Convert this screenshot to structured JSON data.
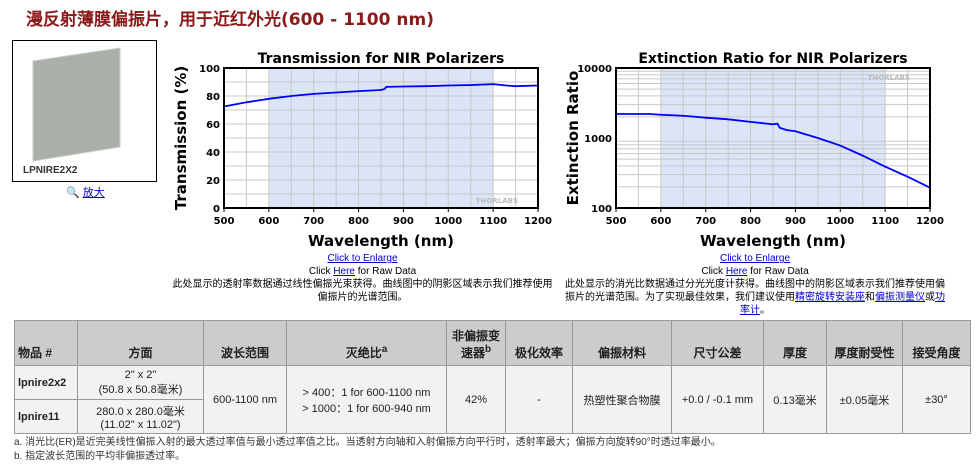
{
  "title": "漫反射薄膜偏振片，用于近红外光(600 - 1100 nm)",
  "product_image": {
    "label": "LPNIRE2X2",
    "zoom_label": "放大",
    "zoom_icon": "magnifier-plus-icon"
  },
  "charts_text": [
    {
      "enlarge": "Click to Enlarge",
      "click": "Click ",
      "here": "Here",
      "raw": " for Raw Data",
      "desc": "此处显示的透射率数据通过线性偏振光束获得。曲线图中的阴影区域表示我们推荐使用偏振片的光谱范围。"
    },
    {
      "enlarge": "Click to Enlarge",
      "click": "Click ",
      "here": "Here",
      "raw": " for Raw Data",
      "desc": "此处显示的消光比数据通过分光光度计获得。曲线图中的阴影区域表示我们推荐使用偏振片的光谱范围。为了实现最佳效果，我们建议使用",
      "link1": "精密旋转安装座",
      "and": "和",
      "link2": "偏振测量仪",
      "or": "或",
      "link3": "功率计",
      "end": "。"
    }
  ],
  "chart_data": [
    {
      "type": "line",
      "title": "Transmission for NIR Polarizers",
      "xlabel": "Wavelength (nm)",
      "ylabel": "Transmission (%)",
      "xlim": [
        500,
        1200
      ],
      "ylim": [
        0,
        100
      ],
      "xticks": [
        500,
        600,
        700,
        800,
        900,
        1000,
        1100,
        1200
      ],
      "yticks": [
        0,
        20,
        40,
        60,
        80,
        100
      ],
      "shaded_range": [
        600,
        1100
      ],
      "grid": true,
      "watermark": "THORLABS",
      "color": "#0000ff",
      "x": [
        500,
        550,
        600,
        650,
        700,
        750,
        800,
        850,
        858,
        862,
        900,
        950,
        1000,
        1050,
        1100,
        1130,
        1150,
        1200
      ],
      "y": [
        72.5,
        75.5,
        78,
        80,
        81.5,
        82.5,
        83.5,
        84.3,
        85,
        86.5,
        86.8,
        87,
        87.5,
        87.8,
        88.5,
        87.5,
        87,
        87.5
      ]
    },
    {
      "type": "line",
      "title": "Extinction Ratio for NIR Polarizers",
      "xlabel": "Wavelength (nm)",
      "ylabel": "Extinction Ratio",
      "xscale": "log-y",
      "xlim": [
        500,
        1200
      ],
      "ylim": [
        100,
        10000
      ],
      "xticks": [
        500,
        600,
        700,
        800,
        900,
        1000,
        1100,
        1200
      ],
      "yticks": [
        100,
        1000,
        10000
      ],
      "shaded_range": [
        600,
        1100
      ],
      "grid": true,
      "watermark": "THORLABS",
      "color": "#0000ff",
      "x": [
        500,
        575,
        600,
        650,
        700,
        750,
        800,
        850,
        860,
        865,
        880,
        900,
        950,
        1000,
        1050,
        1100,
        1150,
        1200
      ],
      "y": [
        2200,
        2200,
        2150,
        2080,
        1950,
        1850,
        1700,
        1570,
        1600,
        1400,
        1300,
        1250,
        1000,
        780,
        560,
        390,
        280,
        195
      ]
    }
  ],
  "table": {
    "headers": [
      "物品 #",
      "方面",
      "波长范围",
      "灭绝比",
      "非偏振变速器",
      "极化效率",
      "偏振材料",
      "尺寸公差",
      "厚度",
      "厚度耐受性",
      "接受角度"
    ],
    "header_sup": {
      "er": "a",
      "np": "b"
    },
    "rows": [
      {
        "item": "lpnire2x2",
        "size1": "2\" x 2\"",
        "size2": "(50.8 x 50.8毫米)"
      },
      {
        "item": "lpnire11",
        "size1": "280.0 x 280.0毫米",
        "size2": "(11.02\" x 11.02\")"
      }
    ],
    "shared": {
      "range": "600-1100 nm",
      "er1": "> 400：1 for 600-1100 nm",
      "er2": "> 1000：1 for 600-940 nm",
      "trans": "42%",
      "eff": "-",
      "material": "热塑性聚合物膜",
      "tol": "+0.0 / -0.1 mm",
      "thick": "0.13毫米",
      "thick_tol": "±0.05毫米",
      "angle": "±30°"
    }
  },
  "footnotes": [
    "a. 消光比(ER)是近完美线性偏振入射的最大透过率值与最小透过率值之比。当透射方向轴和入射偏振方向平行时，透射率最大；偏振方向旋转90°时透过率最小。",
    "b. 指定波长范围的平均非偏振透过率。"
  ]
}
